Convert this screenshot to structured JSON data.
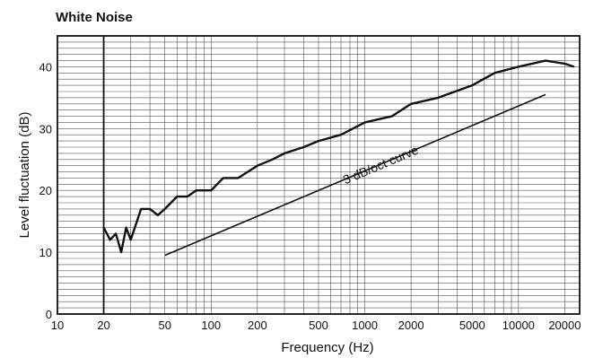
{
  "chart_data": {
    "type": "line",
    "title": "White Noise",
    "xlabel": "Frequency (Hz)",
    "ylabel": "Level fluctuation (dB)",
    "x_scale": "log",
    "xlim": [
      10,
      25000
    ],
    "ylim": [
      0,
      45
    ],
    "x_ticks": [
      10,
      20,
      50,
      100,
      200,
      500,
      1000,
      2000,
      5000,
      10000,
      20000
    ],
    "x_tick_labels": [
      "10",
      "20",
      "50",
      "100",
      "200",
      "500",
      "1000",
      "2000",
      "5000",
      "10000",
      "20000"
    ],
    "y_ticks": [
      0,
      10,
      20,
      30,
      40
    ],
    "y_tick_labels": [
      "0",
      "10",
      "20",
      "30",
      "40"
    ],
    "grid": true,
    "series": [
      {
        "x": [
          20,
          22,
          24,
          26,
          28,
          30,
          35,
          40,
          45,
          50,
          60,
          70,
          80,
          100,
          120,
          150,
          200,
          250,
          300,
          400,
          500,
          700,
          1000,
          1500,
          2000,
          3000,
          5000,
          7000,
          10000,
          15000,
          20000,
          23000
        ],
        "y": [
          14,
          12,
          13,
          10,
          14,
          12,
          17,
          17,
          16,
          17,
          19,
          19,
          20,
          20,
          22,
          22,
          24,
          25,
          26,
          27,
          28,
          29,
          31,
          32,
          34,
          35,
          37,
          39,
          40,
          41,
          40.5,
          40
        ],
        "color": "#111111"
      },
      {
        "x": [
          50,
          15000
        ],
        "y": [
          9.5,
          35.5
        ],
        "color": "#111111"
      }
    ],
    "annotations": [
      {
        "text": "3 dB/oct curve",
        "x": 1300,
        "y": 23.5
      }
    ]
  }
}
